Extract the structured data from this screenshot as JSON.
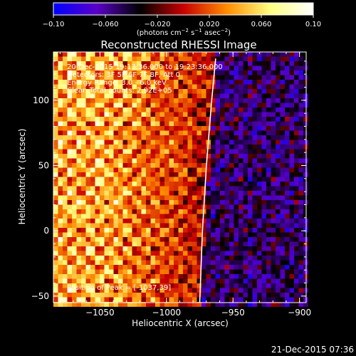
{
  "chart_data": {
    "type": "heatmap",
    "title": "Reconstructed RHESSI Image",
    "xlabel": "Heliocentric X (arcsec)",
    "ylabel": "Heliocentric Y (arcsec)",
    "xlim": [
      -1085,
      -895
    ],
    "ylim": [
      -55,
      137
    ],
    "xticks": [
      -1050,
      -1000,
      -950,
      -900
    ],
    "xtick_labels": [
      "−1050",
      "−1000",
      "−950",
      "−900"
    ],
    "yticks": [
      -50,
      0,
      50,
      100
    ],
    "ytick_labels": [
      "−50",
      "0",
      "50",
      "100"
    ],
    "colorbar": {
      "range": [
        -0.1,
        0.1
      ],
      "ticks": [
        -0.1,
        -0.06,
        -0.02,
        0.02,
        0.06,
        0.1
      ],
      "tick_labels": [
        "−0.10",
        "−0.060",
        "−0.020",
        "0.020",
        "0.060",
        "0.10"
      ],
      "unit_prefix": "(photons cm",
      "unit_exp1": "−2",
      "unit_mid": " s",
      "unit_exp2": "−1",
      "unit_mid2": " asec",
      "unit_exp3": "−2",
      "unit_suffix": ")",
      "colors": [
        "#0000ff",
        "#5a00c8",
        "#000000",
        "#c80000",
        "#ff8c00",
        "#ffff80",
        "#ffffff"
      ]
    },
    "annotations": [
      "20-Dec-2015 19:13:36.000 to 19:23:36.000",
      "Detectors: 3F 5F 6F 7F 8F, Att 0",
      "Energy Range: 3.0 - 6.0 keV",
      "Clean     Total counts: 2.92E+05"
    ],
    "peak_label": "Position of Peak = [-1037,39]",
    "limb": [
      [
        -975,
        -55
      ],
      [
        -973,
        0
      ],
      [
        -970,
        50
      ],
      [
        -966,
        100
      ],
      [
        -963,
        132
      ]
    ],
    "grid": false
  },
  "footer": {
    "timestamp": "21-Dec-2015 07:36"
  }
}
